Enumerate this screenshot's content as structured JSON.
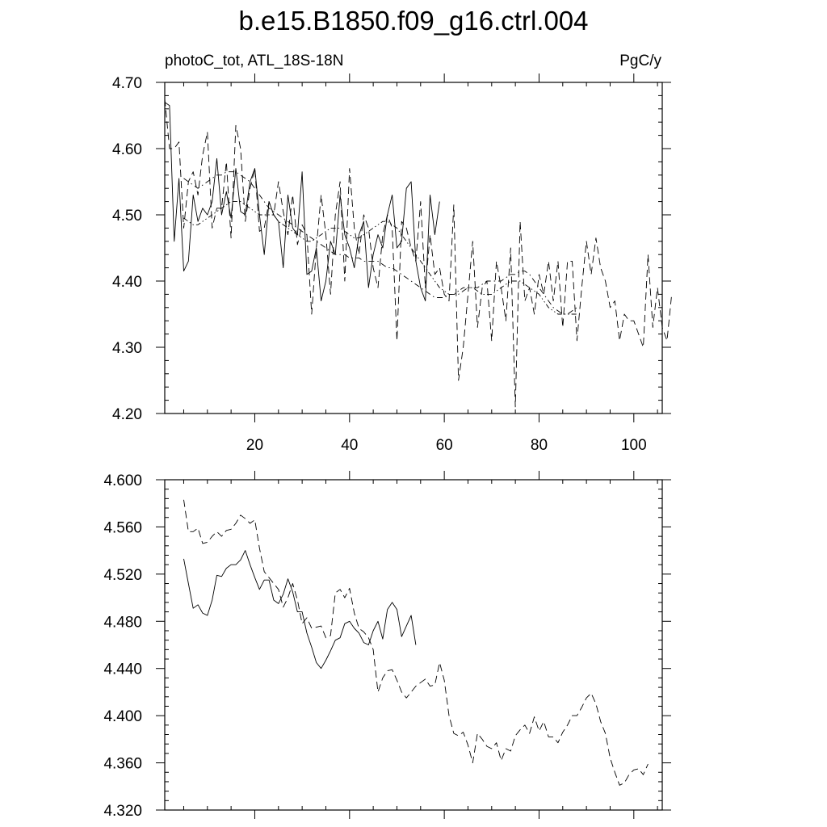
{
  "figure": {
    "title": "b.e15.B1850.f09_g16.ctrl.004",
    "left_label": "photoC_tot, ATL_18S-18N",
    "right_label": "PgC/y"
  },
  "chart_data": [
    {
      "type": "line",
      "panel": "top",
      "xlim": [
        1,
        106
      ],
      "ylim": [
        4.2,
        4.7
      ],
      "x_ticks": [
        20,
        40,
        60,
        80,
        100
      ],
      "x_tick_labels": [
        "20",
        "40",
        "60",
        "80",
        "100"
      ],
      "y_ticks": [
        4.2,
        4.3,
        4.4,
        4.5,
        4.6,
        4.7
      ],
      "y_tick_labels": [
        "4.20",
        "4.30",
        "4.40",
        "4.50",
        "4.60",
        "4.70"
      ],
      "grid": false,
      "series": [
        {
          "style": "solid",
          "x_start": 1,
          "values": [
            4.67,
            4.665,
            4.46,
            4.555,
            4.415,
            4.43,
            4.53,
            4.49,
            4.51,
            4.5,
            4.52,
            4.585,
            4.5,
            4.535,
            4.495,
            4.57,
            4.505,
            4.5,
            4.55,
            4.57,
            4.5,
            4.44,
            4.52,
            4.5,
            4.49,
            4.42,
            4.53,
            4.48,
            4.47,
            4.565,
            4.41,
            4.415,
            4.45,
            4.37,
            4.4,
            4.46,
            4.44,
            4.53,
            4.47,
            4.45,
            4.42,
            4.47,
            4.49,
            4.39,
            4.44,
            4.47,
            4.45,
            4.5,
            4.53,
            4.45,
            4.46,
            4.54,
            4.55,
            4.43,
            4.39,
            4.37,
            4.53,
            4.47,
            4.52
          ]
        },
        {
          "style": "dashed",
          "x_start": 1,
          "values": [
            4.675,
            4.6,
            4.6,
            4.61,
            4.48,
            4.55,
            4.565,
            4.53,
            4.59,
            4.625,
            4.48,
            4.51,
            4.51,
            4.58,
            4.465,
            4.635,
            4.6,
            4.49,
            4.54,
            4.57,
            4.475,
            4.48,
            4.52,
            4.5,
            4.55,
            4.505,
            4.47,
            4.53,
            4.455,
            4.485,
            4.47,
            4.35,
            4.45,
            4.53,
            4.47,
            4.38,
            4.5,
            4.55,
            4.4,
            4.57,
            4.48,
            4.44,
            4.5,
            4.48,
            4.42,
            4.39,
            4.47,
            4.5,
            4.48,
            4.31,
            4.49,
            4.48,
            4.45,
            4.43,
            4.52,
            4.39,
            4.47,
            4.41,
            4.42,
            4.38,
            4.37,
            4.515,
            4.25,
            4.3,
            4.38,
            4.46,
            4.33,
            4.39,
            4.4,
            4.31,
            4.43,
            4.39,
            4.34,
            4.45,
            4.21,
            4.49,
            4.37,
            4.39,
            4.35,
            4.41,
            4.38,
            4.43,
            4.37,
            4.43,
            4.33,
            4.43,
            4.43,
            4.31,
            4.39,
            4.46,
            4.41,
            4.465,
            4.42,
            4.4,
            4.36,
            4.37,
            4.31,
            4.35,
            4.34,
            4.34,
            4.32,
            4.3,
            4.44,
            4.33,
            4.39,
            4.33,
            4.31,
            4.38
          ]
        },
        {
          "style": "dash-dot",
          "x_start": 5,
          "values": [
            4.555,
            4.55,
            4.545,
            4.54,
            4.545,
            4.55,
            4.555,
            4.56,
            4.56,
            4.565,
            4.565,
            4.565,
            4.56,
            4.555,
            4.55,
            4.54,
            4.53,
            4.52,
            4.51,
            4.505,
            4.5,
            4.495,
            4.49,
            4.485,
            4.48,
            4.475,
            4.47,
            4.465,
            4.46,
            4.455,
            4.45,
            4.445,
            4.44,
            4.44,
            4.44,
            4.435,
            4.435,
            4.435,
            4.43,
            4.43,
            4.43,
            4.43,
            4.425,
            4.42,
            4.42,
            4.415,
            4.41,
            4.405,
            4.4,
            4.395,
            4.39,
            4.385,
            4.38,
            4.375,
            4.375,
            4.375,
            4.38,
            4.38,
            4.38,
            4.385,
            4.39,
            4.39,
            4.39,
            4.395,
            4.4,
            4.4,
            4.4,
            4.4,
            4.405,
            4.41,
            4.41,
            4.415,
            4.415,
            4.41,
            4.4,
            4.39,
            4.38,
            4.37,
            4.36,
            4.355,
            4.35,
            4.35,
            4.355,
            4.36
          ]
        },
        {
          "style": "dash-dot-dot",
          "x_start": 5,
          "values": [
            4.495,
            4.49,
            4.485,
            4.485,
            4.49,
            4.495,
            4.5,
            4.505,
            4.51,
            4.515,
            4.52,
            4.52,
            4.52,
            4.515,
            4.51,
            4.505,
            4.5,
            4.5,
            4.5,
            4.5,
            4.49,
            4.485,
            4.48,
            4.475,
            4.47,
            4.465,
            4.46,
            4.46,
            4.465,
            4.47,
            4.475,
            4.48,
            4.48,
            4.48,
            4.475,
            4.47,
            4.465,
            4.465,
            4.47,
            4.475,
            4.48,
            4.485,
            4.49,
            4.49,
            4.485,
            4.48,
            4.47,
            4.46,
            4.45,
            4.44,
            4.43,
            4.42,
            4.41,
            4.4,
            4.39,
            4.385,
            4.38,
            4.38,
            4.385,
            4.39,
            4.39,
            4.39,
            4.385,
            4.38,
            4.38,
            4.38,
            4.385,
            4.39,
            4.395,
            4.4,
            4.4,
            4.4,
            4.395,
            4.39,
            4.385,
            4.38,
            4.37,
            4.36,
            4.355,
            4.35,
            4.35,
            4.35,
            4.35,
            4.35
          ]
        }
      ]
    },
    {
      "type": "line",
      "panel": "bottom",
      "xlim": [
        1,
        106
      ],
      "ylim": [
        4.32,
        4.6
      ],
      "x_ticks": [
        20,
        40,
        60,
        80,
        100
      ],
      "x_tick_labels": [],
      "y_ticks": [
        4.32,
        4.36,
        4.4,
        4.44,
        4.48,
        4.52,
        4.56,
        4.6
      ],
      "y_tick_labels": [
        "4.320",
        "4.360",
        "4.400",
        "4.440",
        "4.480",
        "4.520",
        "4.560",
        "4.600"
      ],
      "grid": false,
      "series": [
        {
          "style": "solid",
          "x_start": 5,
          "values": [
            4.533,
            4.512,
            4.491,
            4.494,
            4.487,
            4.485,
            4.498,
            4.519,
            4.518,
            4.525,
            4.528,
            4.528,
            4.532,
            4.54,
            4.528,
            4.517,
            4.507,
            4.515,
            4.515,
            4.498,
            4.495,
            4.503,
            4.516,
            4.505,
            4.488,
            4.488,
            4.47,
            4.458,
            4.445,
            4.44,
            4.447,
            4.455,
            4.464,
            4.466,
            4.478,
            4.48,
            4.474,
            4.47,
            4.462,
            4.46,
            4.472,
            4.48,
            4.465,
            4.49,
            4.496,
            4.49,
            4.467,
            4.476,
            4.485,
            4.46
          ]
        },
        {
          "style": "dashed",
          "x_start": 5,
          "values": [
            4.583,
            4.556,
            4.556,
            4.559,
            4.546,
            4.547,
            4.552,
            4.556,
            4.552,
            4.557,
            4.558,
            4.563,
            4.57,
            4.567,
            4.563,
            4.566,
            4.542,
            4.522,
            4.517,
            4.512,
            4.507,
            4.492,
            4.5,
            4.512,
            4.498,
            4.478,
            4.483,
            4.474,
            4.475,
            4.476,
            4.466,
            4.468,
            4.504,
            4.507,
            4.5,
            4.508,
            4.487,
            4.474,
            4.471,
            4.466,
            4.456,
            4.42,
            4.432,
            4.438,
            4.439,
            4.43,
            4.42,
            4.415,
            4.42,
            4.425,
            4.428,
            4.431,
            4.425,
            4.426,
            4.445,
            4.43,
            4.4,
            4.385,
            4.383,
            4.386,
            4.375,
            4.36,
            4.385,
            4.38,
            4.374,
            4.372,
            4.377,
            4.362,
            4.372,
            4.37,
            4.383,
            4.388,
            4.392,
            4.385,
            4.399,
            4.387,
            4.395,
            4.382,
            4.382,
            4.377,
            4.386,
            4.392,
            4.4,
            4.4,
            4.407,
            4.415,
            4.419,
            4.41,
            4.395,
            4.385,
            4.364,
            4.352,
            4.341,
            4.343,
            4.35,
            4.354,
            4.355,
            4.35,
            4.359
          ]
        }
      ]
    }
  ]
}
